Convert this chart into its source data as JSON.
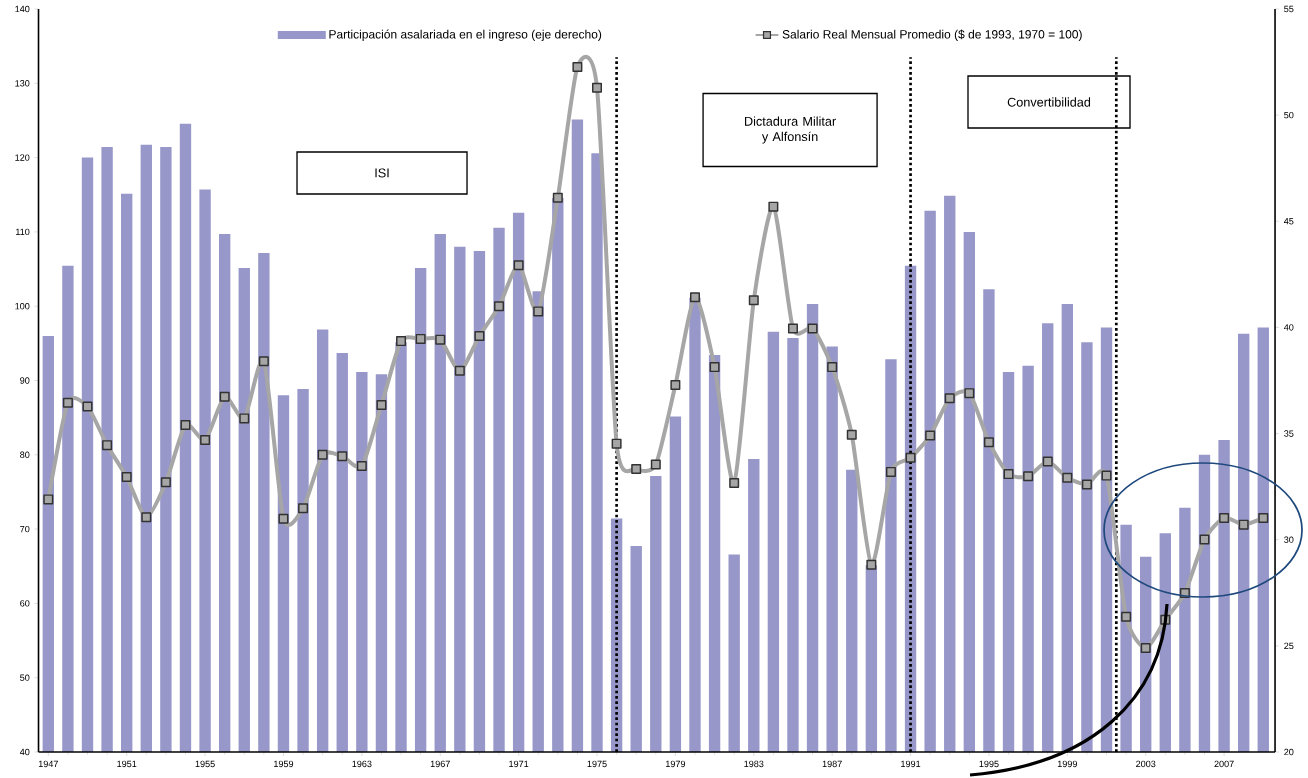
{
  "chart_data": {
    "type": "bar",
    "x": [
      1947,
      1948,
      1949,
      1950,
      1951,
      1952,
      1953,
      1954,
      1955,
      1956,
      1957,
      1958,
      1959,
      1960,
      1961,
      1962,
      1963,
      1964,
      1965,
      1966,
      1967,
      1968,
      1969,
      1970,
      1971,
      1972,
      1973,
      1974,
      1975,
      1976,
      1977,
      1978,
      1979,
      1980,
      1981,
      1982,
      1983,
      1984,
      1985,
      1986,
      1987,
      1988,
      1989,
      1990,
      1991,
      1992,
      1993,
      1994,
      1995,
      1996,
      1997,
      1998,
      1999,
      2000,
      2001,
      2002,
      2003,
      2004,
      2005,
      2006,
      2007,
      2008,
      2009
    ],
    "series": [
      {
        "name": "Participación asalariada en el ingreso (eje derecho)",
        "axis": "y2",
        "color": "#9797c9",
        "values": [
          39.6,
          42.9,
          48.0,
          48.5,
          46.3,
          48.6,
          48.5,
          49.6,
          46.5,
          44.4,
          42.8,
          43.5,
          36.8,
          37.1,
          39.9,
          38.8,
          37.9,
          37.8,
          39.3,
          42.8,
          44.4,
          43.8,
          43.6,
          44.7,
          45.4,
          41.7,
          46.1,
          49.8,
          48.2,
          31.0,
          29.7,
          33.0,
          35.8,
          41.4,
          38.7,
          29.3,
          33.8,
          39.8,
          39.5,
          41.1,
          39.1,
          33.3,
          28.8,
          38.5,
          42.9,
          45.5,
          46.2,
          44.5,
          41.8,
          37.9,
          38.2,
          40.2,
          41.1,
          39.3,
          40.0,
          30.7,
          29.2,
          30.3,
          31.5,
          34.0,
          34.7,
          39.7,
          40.0
        ]
      },
      {
        "name": "Salario Real Mensual Promedio ($ de 1993, 1970 = 100)",
        "type": "line",
        "color": "#a6a6a6",
        "marker": "square",
        "values": [
          74.0,
          87.0,
          86.5,
          81.3,
          77.0,
          71.6,
          76.3,
          84.0,
          82.0,
          87.8,
          84.9,
          92.6,
          71.4,
          72.8,
          80.0,
          79.8,
          78.5,
          86.7,
          95.3,
          95.6,
          95.5,
          91.3,
          96.0,
          100.0,
          105.5,
          99.3,
          114.6,
          132.2,
          129.4,
          81.5,
          78.1,
          78.7,
          89.4,
          101.2,
          91.8,
          76.2,
          100.8,
          113.4,
          97.0,
          97.0,
          91.8,
          82.7,
          65.2,
          77.7,
          79.6,
          82.6,
          87.6,
          88.3,
          81.7,
          77.4,
          77.1,
          79.1,
          76.9,
          76.0,
          77.2,
          58.2,
          54.0,
          57.8,
          61.4,
          68.6,
          71.5,
          70.6,
          71.5
        ]
      }
    ],
    "xlim": [
      1946.5,
      2009.6
    ],
    "xticks": [
      1947,
      1951,
      1955,
      1959,
      1963,
      1967,
      1971,
      1975,
      1979,
      1983,
      1987,
      1991,
      1995,
      1999,
      2003,
      2007
    ],
    "ylim": [
      40,
      140
    ],
    "yticks": [
      40,
      50,
      60,
      70,
      80,
      90,
      100,
      110,
      120,
      130,
      140
    ],
    "y2lim": [
      20,
      55
    ],
    "y2ticks": [
      20,
      25,
      30,
      35,
      40,
      45,
      50,
      55
    ],
    "ref_lines": [
      {
        "axis": "x",
        "value": 1976,
        "color": "#000000",
        "line_style": "dotted"
      },
      {
        "axis": "x",
        "value": 1991,
        "color": "#000000",
        "line_style": "dotted"
      },
      {
        "axis": "x",
        "value": 2001.5,
        "color": "#000000",
        "line_style": "dotted"
      }
    ],
    "annotations": [
      "ISI",
      "Dictadura Militar y Alfonsín",
      "Convertibilidad"
    ],
    "legend": "top",
    "grid": false
  }
}
